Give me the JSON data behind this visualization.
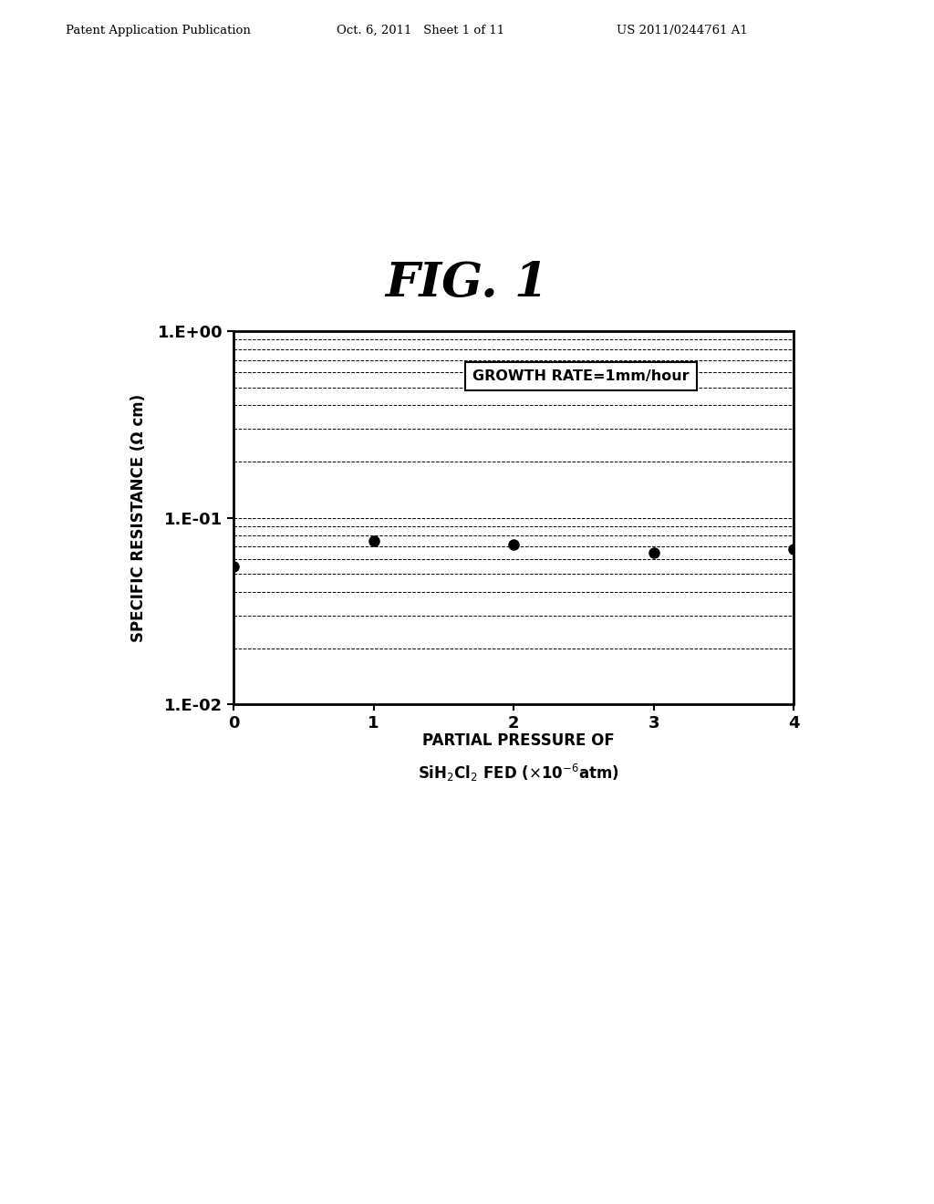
{
  "title": "FIG. 1",
  "header_left": "Patent Application Publication",
  "header_mid": "Oct. 6, 2011   Sheet 1 of 11",
  "header_right": "US 2011/0244761 A1",
  "ylabel": "SPECIFIC RESISTANCE (Ω cm)",
  "xlabel_line1": "PARTIAL PRESSURE OF",
  "xlabel_line2": "SiH$_2$Cl$_2$ FED ($\\times$10$^{-6}$atm)",
  "annotation": "GROWTH RATE=1mm/hour",
  "x_data": [
    0.0,
    1.0,
    2.0,
    3.0,
    4.0
  ],
  "y_data": [
    0.055,
    0.075,
    0.072,
    0.065,
    0.068
  ],
  "xlim": [
    0,
    4
  ],
  "ytick_labels": [
    "1.E-02",
    "1.E-01",
    "1.E+00"
  ],
  "xtick_labels": [
    "0",
    "1",
    "2",
    "3",
    "4"
  ],
  "background_color": "#ffffff",
  "plot_color": "#000000",
  "marker_color": "#000000"
}
